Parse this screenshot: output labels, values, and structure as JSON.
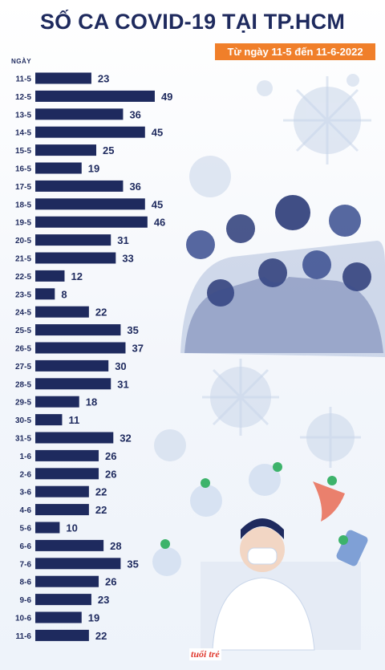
{
  "title": "SỐ CA COVID-19 TẠI TP.HCM",
  "subtitle": "Từ ngày 11-5 đến 11-6-2022",
  "axis_caption": "NGÀY",
  "logo_text": "tuổi trẻ",
  "colors": {
    "bar": "#1e2a5e",
    "label": "#1e2a5e",
    "accent": "#f07f2a",
    "virus": "#c9d6ea"
  },
  "chart_data": {
    "type": "bar",
    "orientation": "horizontal",
    "title": "SỐ CA COVID-19 TẠI TP.HCM",
    "subtitle": "Từ ngày 11-5 đến 11-6-2022",
    "ylabel": "NGÀY",
    "xlim": [
      0,
      50
    ],
    "grid": false,
    "categories": [
      "11-5",
      "12-5",
      "13-5",
      "14-5",
      "15-5",
      "16-5",
      "17-5",
      "18-5",
      "19-5",
      "20-5",
      "21-5",
      "22-5",
      "23-5",
      "24-5",
      "25-5",
      "26-5",
      "27-5",
      "28-5",
      "29-5",
      "30-5",
      "31-5",
      "1-6",
      "2-6",
      "3-6",
      "4-6",
      "5-6",
      "6-6",
      "7-6",
      "8-6",
      "9-6",
      "10-6",
      "11-6"
    ],
    "values": [
      23,
      49,
      36,
      45,
      25,
      19,
      36,
      45,
      46,
      31,
      33,
      12,
      8,
      22,
      35,
      37,
      30,
      31,
      18,
      11,
      32,
      26,
      26,
      22,
      22,
      10,
      28,
      35,
      26,
      23,
      19,
      22
    ]
  }
}
